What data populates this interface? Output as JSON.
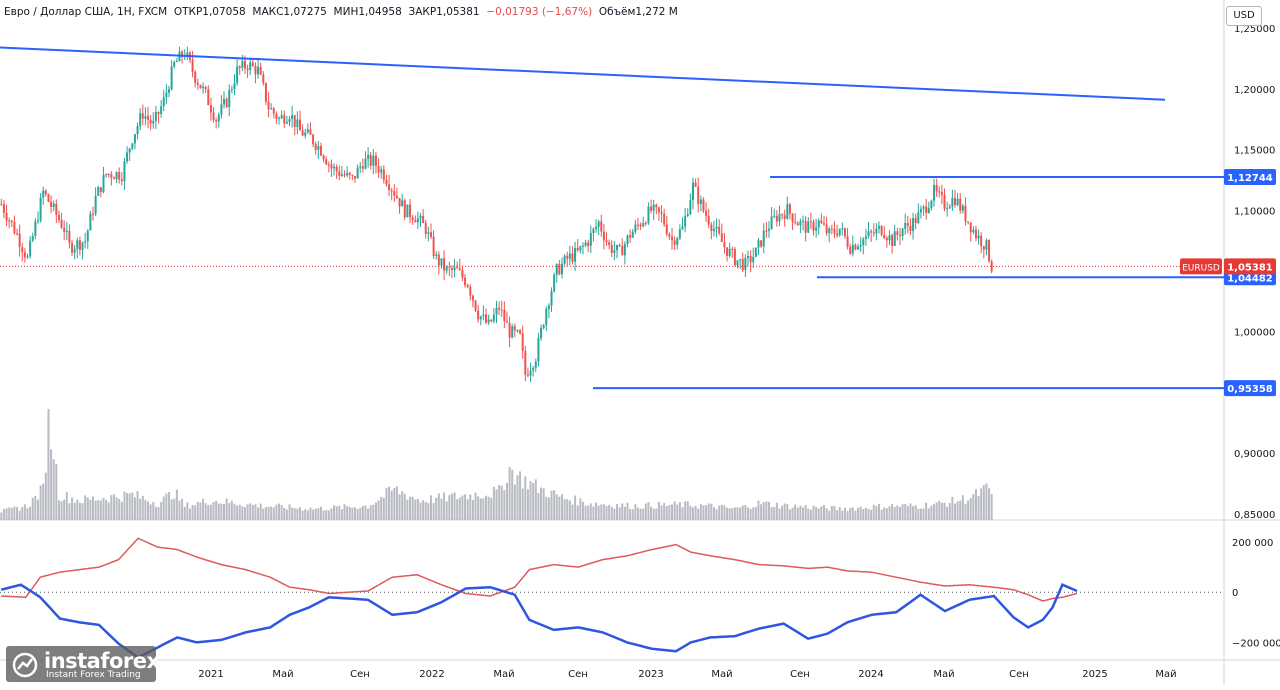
{
  "header": {
    "symbol": "Евро / Доллар США, 1Н, FXCM",
    "open": "ОТКР1,07058",
    "high": "МАКС1,07275",
    "low": "МИН1,04958",
    "close": "ЗАКР1,05381",
    "change": "−0,01793 (−1,67%)",
    "volume": "Объём1,272 M"
  },
  "currency": "USD",
  "logo": {
    "brand": "instaforex",
    "tagline": "Instant Forex Trading"
  },
  "colors": {
    "up": "#26a69a",
    "down": "#ef5350",
    "level": "#2962ff",
    "net_long": "#e05a5a",
    "net_short": "#2e56e0",
    "label_red": "#e53935"
  },
  "chart_data": [
    {
      "type": "candlestick",
      "title": "Евро / Доллар США, 1Н, FXCM",
      "timeframe": "1W",
      "x_tick_labels": [
        "2021",
        "Май",
        "Сен",
        "2022",
        "Май",
        "Сен",
        "2023",
        "Май",
        "Сен",
        "2024",
        "Май",
        "Сен",
        "2025",
        "Май"
      ],
      "y_tick_labels": [
        "1,25000",
        "1,20000",
        "1,15000",
        "1,10000",
        "1,00000",
        "0,90000",
        "0,85000"
      ],
      "ylim": [
        0.845,
        1.255
      ],
      "price_path": [
        [
          0,
          1.105
        ],
        [
          6,
          1.08
        ],
        [
          10,
          1.06
        ],
        [
          16,
          1.115
        ],
        [
          20,
          1.1
        ],
        [
          24,
          1.085
        ],
        [
          26,
          1.07
        ],
        [
          32,
          1.075
        ],
        [
          36,
          1.11
        ],
        [
          40,
          1.13
        ],
        [
          46,
          1.13
        ],
        [
          50,
          1.16
        ],
        [
          54,
          1.18
        ],
        [
          58,
          1.17
        ],
        [
          62,
          1.19
        ],
        [
          66,
          1.22
        ],
        [
          70,
          1.23
        ],
        [
          74,
          1.21
        ],
        [
          78,
          1.195
        ],
        [
          82,
          1.175
        ],
        [
          86,
          1.19
        ],
        [
          90,
          1.215
        ],
        [
          94,
          1.22
        ],
        [
          98,
          1.215
        ],
        [
          102,
          1.185
        ],
        [
          106,
          1.175
        ],
        [
          110,
          1.18
        ],
        [
          114,
          1.165
        ],
        [
          118,
          1.16
        ],
        [
          122,
          1.15
        ],
        [
          126,
          1.135
        ],
        [
          130,
          1.13
        ],
        [
          134,
          1.125
        ],
        [
          138,
          1.14
        ],
        [
          142,
          1.14
        ],
        [
          146,
          1.13
        ],
        [
          150,
          1.115
        ],
        [
          154,
          1.1
        ],
        [
          158,
          1.095
        ],
        [
          162,
          1.085
        ],
        [
          166,
          1.06
        ],
        [
          170,
          1.05
        ],
        [
          174,
          1.05
        ],
        [
          178,
          1.04
        ],
        [
          182,
          1.015
        ],
        [
          186,
          1.005
        ],
        [
          190,
          1.02
        ],
        [
          194,
          1.0
        ],
        [
          198,
          0.995
        ],
        [
          200,
          0.965
        ],
        [
          204,
          0.98
        ],
        [
          208,
          1.02
        ],
        [
          212,
          1.05
        ],
        [
          216,
          1.06
        ],
        [
          220,
          1.065
        ],
        [
          224,
          1.075
        ],
        [
          228,
          1.09
        ],
        [
          232,
          1.07
        ],
        [
          236,
          1.065
        ],
        [
          240,
          1.08
        ],
        [
          244,
          1.09
        ],
        [
          248,
          1.1
        ],
        [
          252,
          1.095
        ],
        [
          256,
          1.075
        ],
        [
          260,
          1.085
        ],
        [
          264,
          1.12
        ],
        [
          268,
          1.1
        ],
        [
          272,
          1.085
        ],
        [
          276,
          1.07
        ],
        [
          280,
          1.06
        ],
        [
          284,
          1.055
        ],
        [
          288,
          1.065
        ],
        [
          292,
          1.085
        ],
        [
          296,
          1.095
        ],
        [
          300,
          1.1
        ],
        [
          304,
          1.09
        ],
        [
          308,
          1.085
        ],
        [
          312,
          1.09
        ],
        [
          316,
          1.08
        ],
        [
          320,
          1.085
        ],
        [
          324,
          1.07
        ],
        [
          328,
          1.075
        ],
        [
          332,
          1.08
        ],
        [
          336,
          1.085
        ],
        [
          340,
          1.075
        ],
        [
          344,
          1.085
        ],
        [
          348,
          1.09
        ],
        [
          352,
          1.1
        ],
        [
          356,
          1.115
        ],
        [
          360,
          1.105
        ],
        [
          364,
          1.11
        ],
        [
          368,
          1.095
        ],
        [
          372,
          1.08
        ],
        [
          376,
          1.07
        ],
        [
          378,
          1.0538
        ]
      ],
      "levels": [
        {
          "label": "1,12744",
          "value": 1.12744,
          "from": 1.09,
          "to": 1.25
        },
        {
          "label": "1,04482",
          "value": 1.04482,
          "from": 1.1,
          "to": 1.25
        },
        {
          "label": "0,95358",
          "value": 0.95358,
          "from": 0.97,
          "to": 1.25
        }
      ],
      "trendline": {
        "start": 1.234,
        "end": 1.191
      },
      "current_price": {
        "symbol": "EURUSD",
        "label": "1,05381",
        "value": 1.05381
      },
      "volume_bars": [
        [
          0,
          6
        ],
        [
          10,
          10
        ],
        [
          16,
          22
        ],
        [
          18,
          68
        ],
        [
          20,
          52
        ],
        [
          22,
          18
        ],
        [
          30,
          14
        ],
        [
          40,
          16
        ],
        [
          50,
          18
        ],
        [
          60,
          12
        ],
        [
          66,
          20
        ],
        [
          70,
          10
        ],
        [
          80,
          14
        ],
        [
          100,
          10
        ],
        [
          120,
          8
        ],
        [
          140,
          10
        ],
        [
          150,
          22
        ],
        [
          160,
          14
        ],
        [
          170,
          16
        ],
        [
          180,
          18
        ],
        [
          190,
          20
        ],
        [
          194,
          36
        ],
        [
          198,
          30
        ],
        [
          206,
          22
        ],
        [
          214,
          16
        ],
        [
          224,
          12
        ],
        [
          240,
          10
        ],
        [
          260,
          11
        ],
        [
          270,
          10
        ],
        [
          280,
          8
        ],
        [
          290,
          12
        ],
        [
          300,
          10
        ],
        [
          320,
          8
        ],
        [
          340,
          10
        ],
        [
          350,
          10
        ],
        [
          360,
          12
        ],
        [
          370,
          16
        ],
        [
          376,
          22
        ],
        [
          380,
          16
        ]
      ]
    },
    {
      "type": "line",
      "title": "",
      "series_names": [
        "",
        ""
      ],
      "y_tick_labels": [
        "200 000",
        "0",
        "−200 000"
      ],
      "ylim": [
        -270000,
        240000
      ],
      "net_long": [
        [
          0,
          -15000
        ],
        [
          10,
          -20000
        ],
        [
          16,
          60000
        ],
        [
          24,
          80000
        ],
        [
          32,
          90000
        ],
        [
          40,
          100000
        ],
        [
          48,
          130000
        ],
        [
          56,
          215000
        ],
        [
          64,
          180000
        ],
        [
          72,
          170000
        ],
        [
          80,
          140000
        ],
        [
          90,
          110000
        ],
        [
          100,
          90000
        ],
        [
          110,
          60000
        ],
        [
          118,
          20000
        ],
        [
          126,
          10000
        ],
        [
          134,
          -5000
        ],
        [
          142,
          0
        ],
        [
          150,
          5000
        ],
        [
          160,
          60000
        ],
        [
          170,
          70000
        ],
        [
          180,
          30000
        ],
        [
          190,
          -5000
        ],
        [
          200,
          -15000
        ],
        [
          210,
          20000
        ],
        [
          216,
          90000
        ],
        [
          226,
          110000
        ],
        [
          236,
          100000
        ],
        [
          246,
          130000
        ],
        [
          256,
          145000
        ],
        [
          266,
          170000
        ],
        [
          276,
          190000
        ],
        [
          282,
          160000
        ],
        [
          290,
          145000
        ],
        [
          300,
          130000
        ],
        [
          310,
          110000
        ],
        [
          320,
          105000
        ],
        [
          330,
          95000
        ],
        [
          338,
          100000
        ],
        [
          346,
          85000
        ],
        [
          356,
          80000
        ],
        [
          366,
          60000
        ],
        [
          376,
          40000
        ],
        [
          386,
          25000
        ],
        [
          396,
          30000
        ],
        [
          406,
          20000
        ],
        [
          414,
          10000
        ],
        [
          420,
          -10000
        ],
        [
          426,
          -35000
        ],
        [
          430,
          -25000
        ],
        [
          434,
          -20000
        ],
        [
          440,
          -5000
        ]
      ],
      "net_short": [
        [
          0,
          10000
        ],
        [
          8,
          30000
        ],
        [
          16,
          -20000
        ],
        [
          24,
          -105000
        ],
        [
          32,
          -120000
        ],
        [
          40,
          -130000
        ],
        [
          48,
          -205000
        ],
        [
          56,
          -260000
        ],
        [
          64,
          -220000
        ],
        [
          72,
          -180000
        ],
        [
          80,
          -200000
        ],
        [
          90,
          -190000
        ],
        [
          100,
          -160000
        ],
        [
          110,
          -140000
        ],
        [
          118,
          -90000
        ],
        [
          126,
          -60000
        ],
        [
          134,
          -20000
        ],
        [
          142,
          -25000
        ],
        [
          150,
          -30000
        ],
        [
          160,
          -90000
        ],
        [
          170,
          -80000
        ],
        [
          180,
          -40000
        ],
        [
          190,
          15000
        ],
        [
          200,
          20000
        ],
        [
          210,
          -10000
        ],
        [
          216,
          -110000
        ],
        [
          226,
          -150000
        ],
        [
          236,
          -140000
        ],
        [
          246,
          -160000
        ],
        [
          256,
          -200000
        ],
        [
          266,
          -225000
        ],
        [
          276,
          -235000
        ],
        [
          282,
          -200000
        ],
        [
          290,
          -180000
        ],
        [
          300,
          -175000
        ],
        [
          310,
          -145000
        ],
        [
          320,
          -125000
        ],
        [
          330,
          -185000
        ],
        [
          338,
          -165000
        ],
        [
          346,
          -120000
        ],
        [
          356,
          -90000
        ],
        [
          366,
          -80000
        ],
        [
          376,
          -10000
        ],
        [
          386,
          -75000
        ],
        [
          396,
          -30000
        ],
        [
          406,
          -15000
        ],
        [
          414,
          -100000
        ],
        [
          420,
          -140000
        ],
        [
          426,
          -110000
        ],
        [
          430,
          -60000
        ],
        [
          434,
          30000
        ],
        [
          440,
          5000
        ]
      ]
    }
  ]
}
